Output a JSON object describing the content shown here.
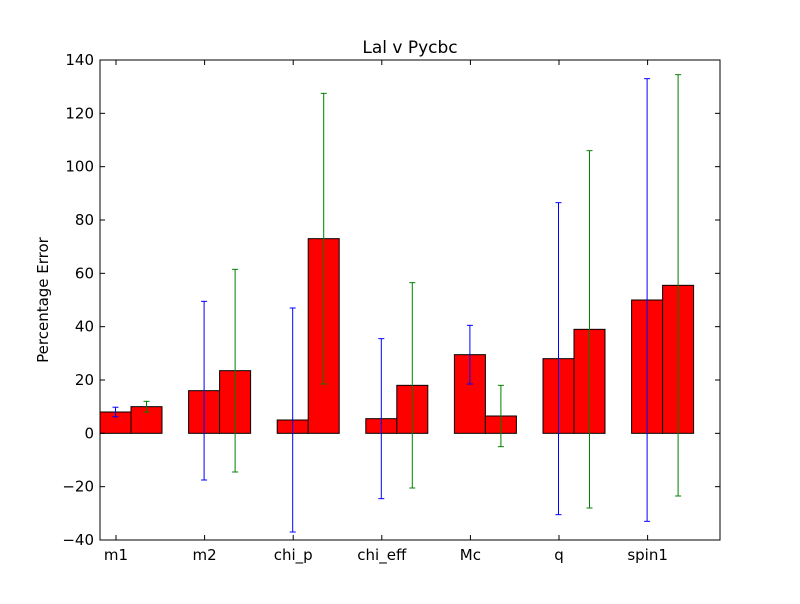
{
  "chart_data": {
    "type": "bar",
    "title": "Lal v Pycbc",
    "xlabel": "",
    "ylabel": "Percentage Error",
    "ylim": [
      -40,
      140
    ],
    "yticks": [
      -40,
      -20,
      0,
      20,
      40,
      60,
      80,
      100,
      120,
      140
    ],
    "categories": [
      "m1",
      "m2",
      "chi_p",
      "chi_eff",
      "Mc",
      "q",
      "spin1"
    ],
    "grid": false,
    "series": [
      {
        "values": [
          8,
          16,
          5,
          5.5,
          29.5,
          28,
          50
        ],
        "errors": [
          1.8,
          33.5,
          42,
          30,
          11,
          58.5,
          83
        ],
        "color": "#ff0000",
        "error_color": "#0000ff"
      },
      {
        "values": [
          10,
          23.5,
          73,
          18,
          6.5,
          39,
          55.5
        ],
        "errors": [
          2,
          38,
          54.5,
          38.5,
          11.5,
          67,
          79
        ],
        "color": "#ff0000",
        "error_color": "#008000"
      }
    ]
  }
}
